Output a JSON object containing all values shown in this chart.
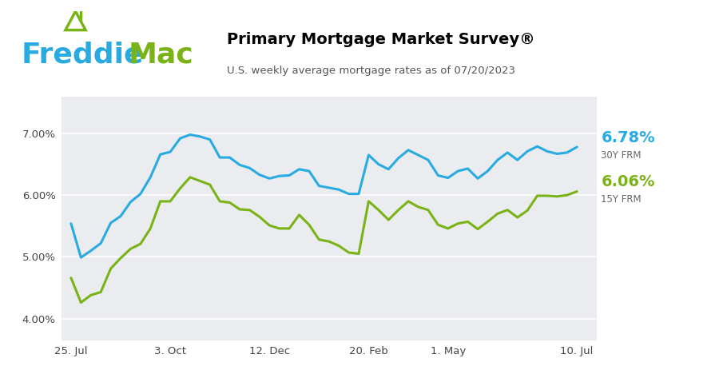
{
  "title": "Primary Mortgage Market Survey®",
  "subtitle": "U.S. weekly average mortgage rates as of 07/20/2023",
  "rate_30y_label": "6.78%",
  "rate_15y_label": "6.06%",
  "label_30y": "30Y FRM",
  "label_15y": "15Y FRM",
  "color_30y": "#29ABE2",
  "color_15y": "#7AB317",
  "plot_bg": "#EAECEF",
  "ytick_labels": [
    "4.00%",
    "5.00%",
    "6.00%",
    "7.00%"
  ],
  "yticks": [
    4.0,
    5.0,
    6.0,
    7.0
  ],
  "ylim": [
    3.65,
    7.6
  ],
  "xtick_labels": [
    "25. Jul",
    "3. Oct",
    "12. Dec",
    "20. Feb",
    "1. May",
    "10. Jul"
  ],
  "xtick_positions": [
    0,
    10,
    20,
    30,
    38,
    51
  ],
  "xlim": [
    -1,
    53
  ],
  "y_30y": [
    5.54,
    4.99,
    5.1,
    5.22,
    5.55,
    5.66,
    5.89,
    6.02,
    6.29,
    6.66,
    6.7,
    6.92,
    6.98,
    6.95,
    6.9,
    6.61,
    6.61,
    6.49,
    6.44,
    6.33,
    6.27,
    6.31,
    6.32,
    6.42,
    6.39,
    6.15,
    6.12,
    6.09,
    6.02,
    6.02,
    6.65,
    6.5,
    6.42,
    6.6,
    6.73,
    6.65,
    6.57,
    6.32,
    6.28,
    6.39,
    6.43,
    6.27,
    6.39,
    6.57,
    6.69,
    6.57,
    6.71,
    6.79,
    6.71,
    6.67,
    6.69,
    6.78
  ],
  "y_15y": [
    4.66,
    4.26,
    4.38,
    4.43,
    4.81,
    4.98,
    5.13,
    5.21,
    5.46,
    5.9,
    5.9,
    6.11,
    6.29,
    6.23,
    6.17,
    5.9,
    5.88,
    5.77,
    5.76,
    5.65,
    5.51,
    5.46,
    5.46,
    5.68,
    5.52,
    5.28,
    5.25,
    5.18,
    5.07,
    5.05,
    5.9,
    5.76,
    5.6,
    5.76,
    5.9,
    5.81,
    5.76,
    5.52,
    5.46,
    5.54,
    5.57,
    5.45,
    5.57,
    5.7,
    5.76,
    5.64,
    5.75,
    5.99,
    5.99,
    5.98,
    6.0,
    6.06
  ],
  "linewidth": 2.2,
  "freddie_blue": "#29ABE2",
  "freddie_green": "#7AB317",
  "grid_color": "#FFFFFF",
  "bottom_line_color": "#AAAAAA"
}
